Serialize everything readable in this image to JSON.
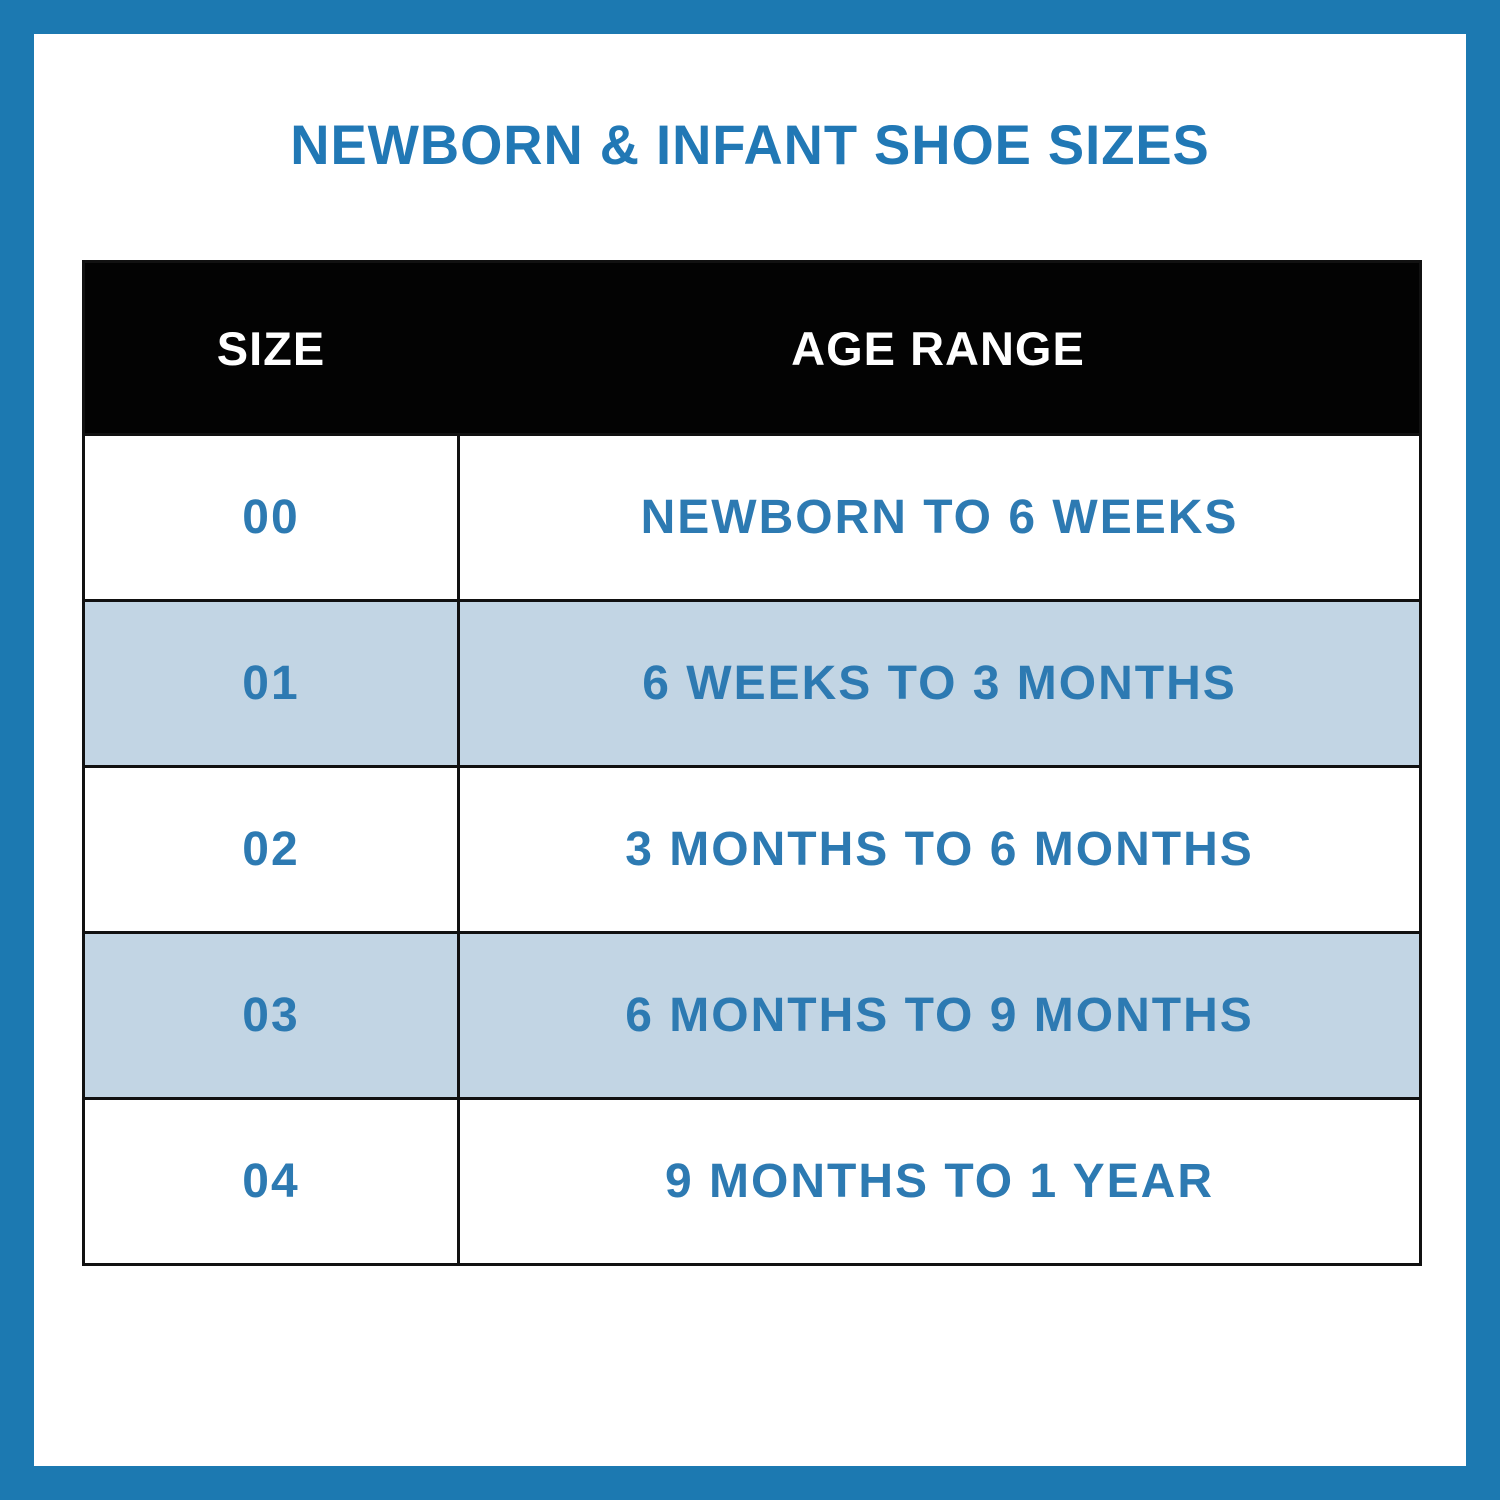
{
  "title": "NEWBORN & INFANT SHOE SIZES",
  "colors": {
    "frame_blue": "#1c79b1",
    "page_bg": "#ffffff",
    "title_blue": "#2178b5",
    "text_blue": "#2d7ab2",
    "row_alt_blue": "#c2d5e4",
    "header_bg": "#030303",
    "header_text": "#ffffff",
    "table_border": "#111111"
  },
  "chart_data": {
    "type": "table",
    "title": "NEWBORN & INFANT SHOE SIZES",
    "columns": [
      "SIZE",
      "AGE RANGE"
    ],
    "rows": [
      {
        "size": "00",
        "age_range": "NEWBORN TO 6 WEEKS"
      },
      {
        "size": "01",
        "age_range": "6 WEEKS TO 3 MONTHS"
      },
      {
        "size": "02",
        "age_range": "3 MONTHS TO 6 MONTHS"
      },
      {
        "size": "03",
        "age_range": "6 MONTHS TO 9 MONTHS"
      },
      {
        "size": "04",
        "age_range": "9 MONTHS TO 1 YEAR"
      }
    ],
    "layout": {
      "legend": "none",
      "grid": "solid black cell borders",
      "striping": "rows alternate white and light blue, starting white",
      "header_style": "solid black bar with white text"
    }
  }
}
